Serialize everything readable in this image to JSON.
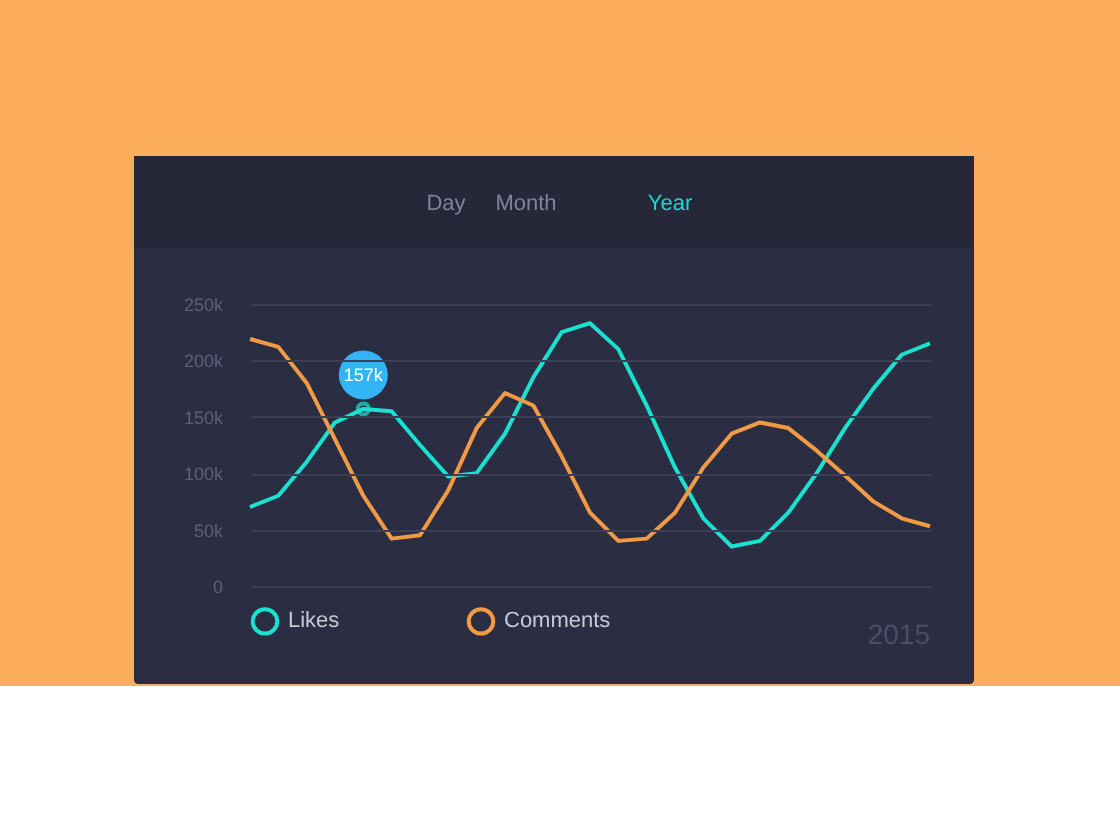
{
  "chart_data": {
    "type": "line",
    "categories": [
      null,
      null,
      null,
      null,
      null,
      null,
      null,
      null,
      null,
      null,
      null,
      null,
      null,
      null,
      null,
      null,
      null,
      null,
      null,
      null,
      null,
      null,
      null,
      null,
      null
    ],
    "series": [
      {
        "name": "Likes",
        "color": "#19e3d0",
        "values": [
          70,
          80,
          110,
          145,
          157,
          155,
          125,
          97,
          100,
          135,
          185,
          225,
          233,
          210,
          160,
          105,
          60,
          35,
          40,
          65,
          100,
          140,
          175,
          205,
          215
        ]
      },
      {
        "name": "Comments",
        "color": "#f39a45",
        "values": [
          219,
          212,
          180,
          130,
          80,
          42,
          45,
          85,
          140,
          171,
          160,
          115,
          65,
          40,
          42,
          65,
          105,
          135,
          145,
          140,
          120,
          98,
          75,
          60,
          53
        ]
      }
    ],
    "ylim": [
      0,
      250
    ],
    "yticks": [
      {
        "value": 0,
        "label": "0"
      },
      {
        "value": 50,
        "label": "50k"
      },
      {
        "value": 100,
        "label": "100k"
      },
      {
        "value": 150,
        "label": "150k"
      },
      {
        "value": 200,
        "label": "200k"
      },
      {
        "value": 250,
        "label": "250k"
      }
    ],
    "tick_labels": "y",
    "grid": "y",
    "legend": "bottom",
    "marker": "none",
    "line_style": "solid",
    "annotations": [
      "Day",
      "Month",
      "Year",
      "2015",
      {
        "text": "157k",
        "y": 157
      }
    ]
  }
}
